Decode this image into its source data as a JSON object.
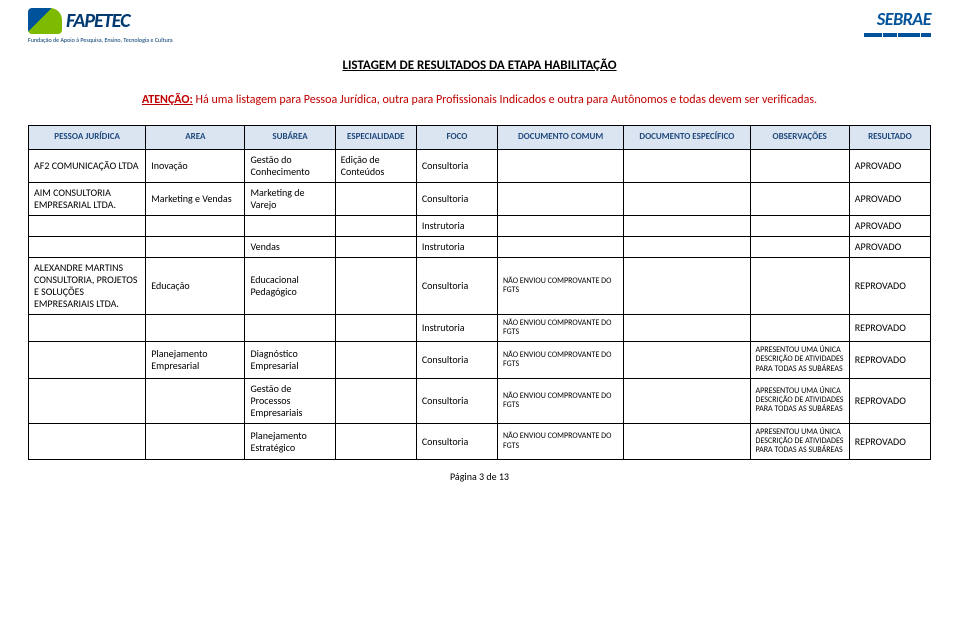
{
  "header": {
    "fapetec_name": "FAPETEC",
    "fapetec_sub": "Fundação de Apoio à Pesquisa, Ensino, Tecnologia e Cultura",
    "sebrae_name": "SEBRAE"
  },
  "title": "LISTAGEM DE RESULTADOS DA ETAPA HABILITAÇÃO",
  "notice": {
    "prefix": "ATENÇÃO:",
    "text": " Há uma listagem para Pessoa Jurídica, outra para Profissionais Indicados e outra para Autônomos e todas devem ser verificadas."
  },
  "columns": {
    "pj": "PESSOA JURÍDICA",
    "area": "AREA",
    "sub": "SUBÁREA",
    "esp": "ESPECIALIDADE",
    "foco": "FOCO",
    "dc": "DOCUMENTO COMUM",
    "de": "DOCUMENTO ESPECÍFICO",
    "obs": "OBSERVAÇÕES",
    "res": "RESULTADO"
  },
  "rows": [
    {
      "pj": "AF2 COMUNICAÇÃO LTDA",
      "area": "Inovação",
      "sub": "Gestão do Conhecimento",
      "esp": "Edição de Conteúdos",
      "foco": "Consultoria",
      "dc": "",
      "de": "",
      "obs": "",
      "res": "APROVADO"
    },
    {
      "pj": "AIM CONSULTORIA EMPRESARIAL LTDA.",
      "area": "Marketing e Vendas",
      "sub": "Marketing de Varejo",
      "esp": "",
      "foco": "Consultoria",
      "dc": "",
      "de": "",
      "obs": "",
      "res": "APROVADO"
    },
    {
      "pj": "",
      "area": "",
      "sub": "",
      "esp": "",
      "foco": "Instrutoria",
      "dc": "",
      "de": "",
      "obs": "",
      "res": "APROVADO"
    },
    {
      "pj": "",
      "area": "",
      "sub": "Vendas",
      "esp": "",
      "foco": "Instrutoria",
      "dc": "",
      "de": "",
      "obs": "",
      "res": "APROVADO"
    },
    {
      "pj": "ALEXANDRE MARTINS CONSULTORIA, PROJETOS E SOLUÇÕES EMPRESARIAIS LTDA.",
      "area": "Educação",
      "sub": "Educacional Pedagógico",
      "esp": "",
      "foco": "Consultoria",
      "dc": "NÃO ENVIOU COMPROVANTE DO FGTS",
      "de": "",
      "obs": "",
      "res": "REPROVADO"
    },
    {
      "pj": "",
      "area": "",
      "sub": "",
      "esp": "",
      "foco": "Instrutoria",
      "dc": "NÃO ENVIOU COMPROVANTE DO FGTS",
      "de": "",
      "obs": "",
      "res": "REPROVADO"
    },
    {
      "pj": "",
      "area": "Planejamento Empresarial",
      "sub": "Diagnóstico Empresarial",
      "esp": "",
      "foco": "Consultoria",
      "dc": "NÃO ENVIOU COMPROVANTE DO FGTS",
      "de": "",
      "obs": "APRESENTOU UMA ÚNICA DESCRIÇÃO DE ATIVIDADES PARA TODAS AS SUBÁREAS",
      "res": "REPROVADO"
    },
    {
      "pj": "",
      "area": "",
      "sub": "Gestão de Processos Empresariais",
      "esp": "",
      "foco": "Consultoria",
      "dc": "NÃO ENVIOU COMPROVANTE DO FGTS",
      "de": "",
      "obs": "APRESENTOU UMA ÚNICA DESCRIÇÃO DE ATIVIDADES PARA TODAS AS SUBÁREAS",
      "res": "REPROVADO"
    },
    {
      "pj": "",
      "area": "",
      "sub": "Planejamento Estratégico",
      "esp": "",
      "foco": "Consultoria",
      "dc": "NÃO ENVIOU COMPROVANTE DO FGTS",
      "de": "",
      "obs": "APRESENTOU UMA ÚNICA DESCRIÇÃO DE ATIVIDADES PARA TODAS AS SUBÁREAS",
      "res": "REPROVADO"
    }
  ],
  "footer": "Página 3 de 13",
  "colors": {
    "header_bg": "#dbe5f1",
    "header_text": "#1f497d",
    "notice_color": "#c00000",
    "border": "#000000",
    "brand_blue": "#00529b"
  }
}
